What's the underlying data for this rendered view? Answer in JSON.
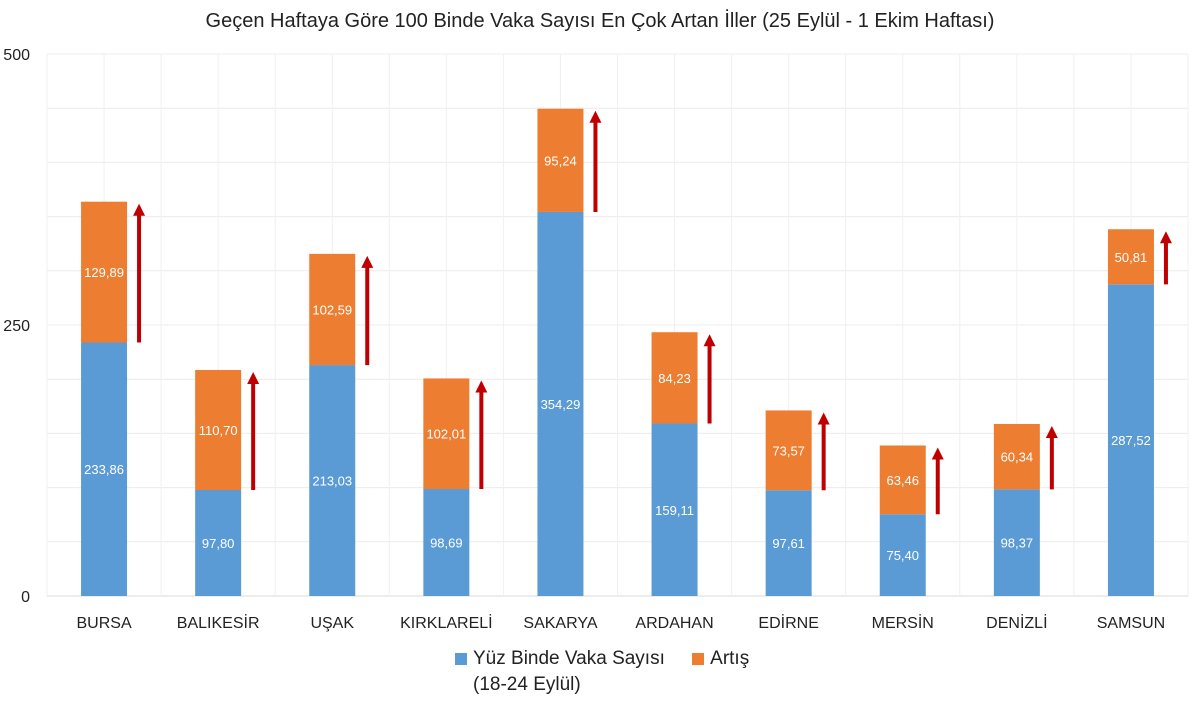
{
  "chart_data": {
    "type": "bar",
    "stacked": true,
    "title": "Geçen Haftaya Göre 100 Binde Vaka Sayısı En Çok Artan İller (25 Eylül - 1 Ekim Haftası)",
    "xlabel": "",
    "ylabel": "",
    "ylim": [
      0,
      500
    ],
    "yticks": [
      "0",
      "250",
      "500"
    ],
    "yticks_values": [
      0,
      250,
      500
    ],
    "grid": true,
    "legend_position": "bottom",
    "categories": [
      "BURSA",
      "BALIKESİR",
      "UŞAK",
      "KIRKLARELİ",
      "SAKARYA",
      "ARDAHAN",
      "EDİRNE",
      "MERSİN",
      "DENİZLİ",
      "SAMSUN"
    ],
    "series": [
      {
        "name": "Yüz Binde Vaka Sayısı (18-24 Eylül)",
        "name_line1": "Yüz Binde Vaka Sayısı",
        "name_line2": "(18-24 Eylül)",
        "color": "#5b9bd5",
        "values": [
          233.86,
          97.8,
          213.03,
          98.69,
          354.29,
          159.11,
          97.61,
          75.4,
          98.37,
          287.52
        ],
        "labels": [
          "233,86",
          "97,80",
          "213,03",
          "98,69",
          "354,29",
          "159,11",
          "97,61",
          "75,40",
          "98,37",
          "287,52"
        ]
      },
      {
        "name": "Artış",
        "color": "#ed7d31",
        "values": [
          129.89,
          110.7,
          102.59,
          102.01,
          95.24,
          84.23,
          73.57,
          63.46,
          60.34,
          50.81
        ],
        "labels": [
          "129,89",
          "110,70",
          "102,59",
          "102,01",
          "95,24",
          "84,23",
          "73,57",
          "63,46",
          "60,34",
          "50,81"
        ]
      }
    ],
    "annotation": {
      "type": "up-arrow",
      "color": "#c00000"
    }
  }
}
